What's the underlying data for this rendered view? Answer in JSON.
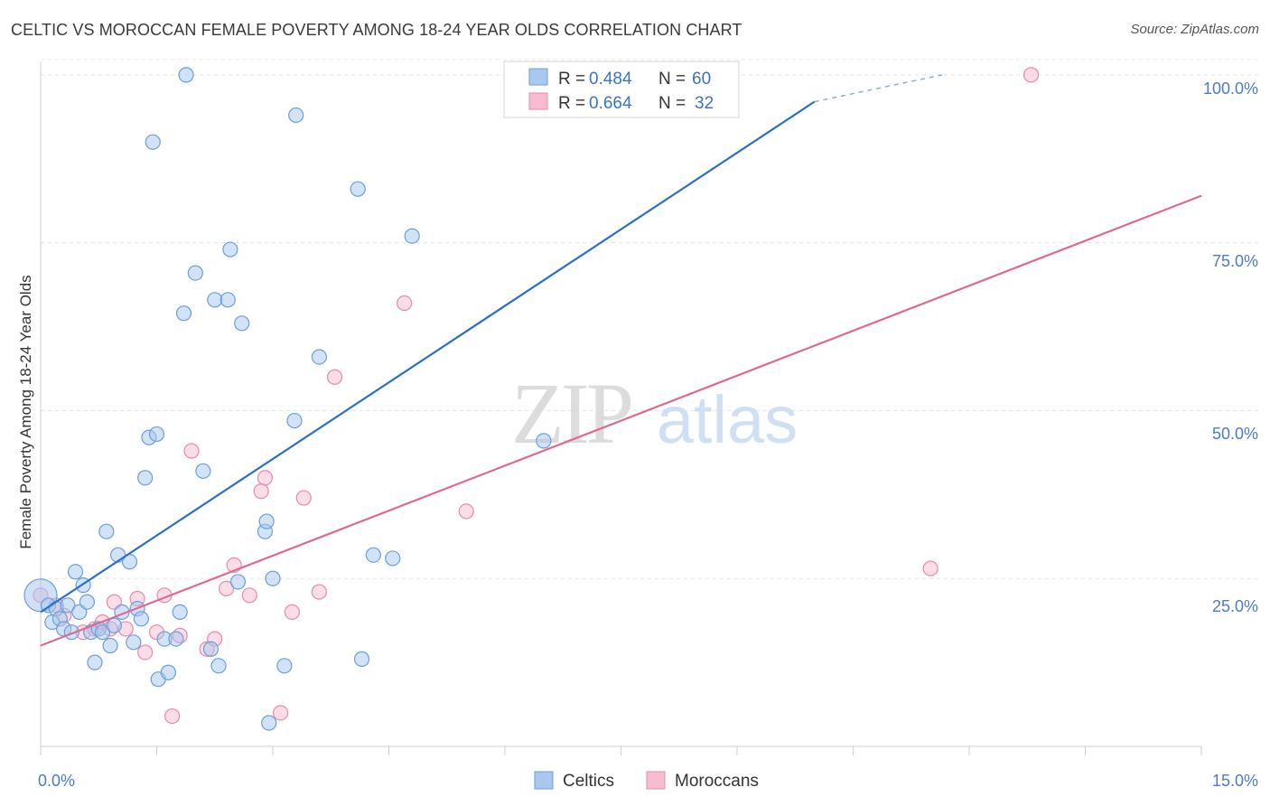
{
  "chart_data": {
    "type": "scatter",
    "title": "CELTIC VS MOROCCAN FEMALE POVERTY AMONG 18-24 YEAR OLDS CORRELATION CHART",
    "source": "Source: ZipAtlas.com",
    "ylabel": "Female Poverty Among 18-24 Year Olds",
    "xlabel": "",
    "x_tick_labels": [
      "0.0%",
      "15.0%"
    ],
    "y_tick_labels": [
      "25.0%",
      "50.0%",
      "75.0%",
      "100.0%"
    ],
    "xlim": [
      0,
      15
    ],
    "ylim": [
      0,
      102
    ],
    "watermark": {
      "zip": "ZIP",
      "atlas": "atlas"
    },
    "legend_stats": [
      {
        "r_label": "R = ",
        "r_value": "0.484",
        "n_label": "N = ",
        "n_value": "60"
      },
      {
        "r_label": "R = ",
        "r_value": "0.664",
        "n_label": "N = ",
        "n_value": "32"
      }
    ],
    "colors": {
      "celtics_fill": "#a8c8f0",
      "celtics_stroke": "#6a9fd8",
      "celtics_line": "#2a6fc9",
      "moroccans_fill": "#f7bcd0",
      "moroccans_stroke": "#e88aaa",
      "moroccans_line": "#e06892",
      "value_text": "#3a72c8",
      "tick_text": "#4a7bc8"
    },
    "series": [
      {
        "name": "Celtics",
        "trend": {
          "x": [
            0,
            10.0
          ],
          "y": [
            20.0,
            96.0
          ],
          "dashed_to": [
            11.65,
            100
          ]
        },
        "points": [
          [
            0.0,
            22.5
          ],
          [
            0.1,
            21.0
          ],
          [
            0.15,
            18.5
          ],
          [
            0.2,
            20.5
          ],
          [
            0.25,
            19.0
          ],
          [
            0.3,
            17.5
          ],
          [
            0.35,
            21.0
          ],
          [
            0.4,
            17.0
          ],
          [
            0.45,
            26.0
          ],
          [
            0.5,
            20.0
          ],
          [
            0.55,
            24.0
          ],
          [
            0.6,
            21.5
          ],
          [
            0.65,
            17.0
          ],
          [
            0.7,
            12.5
          ],
          [
            0.75,
            17.5
          ],
          [
            0.8,
            17.0
          ],
          [
            0.85,
            32.0
          ],
          [
            0.9,
            15.0
          ],
          [
            0.95,
            18.0
          ],
          [
            1.0,
            28.5
          ],
          [
            1.05,
            20.0
          ],
          [
            1.15,
            27.5
          ],
          [
            1.2,
            15.5
          ],
          [
            1.25,
            20.5
          ],
          [
            1.3,
            19.0
          ],
          [
            1.35,
            40.0
          ],
          [
            1.4,
            46.0
          ],
          [
            1.45,
            90.0
          ],
          [
            1.5,
            46.5
          ],
          [
            1.52,
            10.0
          ],
          [
            1.6,
            16.0
          ],
          [
            1.65,
            11.0
          ],
          [
            1.75,
            16.0
          ],
          [
            1.8,
            20.0
          ],
          [
            1.85,
            64.5
          ],
          [
            1.88,
            100.0
          ],
          [
            2.0,
            70.5
          ],
          [
            2.1,
            41.0
          ],
          [
            2.2,
            14.5
          ],
          [
            2.25,
            66.5
          ],
          [
            2.3,
            12.0
          ],
          [
            2.42,
            66.5
          ],
          [
            2.45,
            74.0
          ],
          [
            2.55,
            24.5
          ],
          [
            2.6,
            63.0
          ],
          [
            2.9,
            32.0
          ],
          [
            2.92,
            33.5
          ],
          [
            2.95,
            3.5
          ],
          [
            3.0,
            25.0
          ],
          [
            3.15,
            12.0
          ],
          [
            3.28,
            48.5
          ],
          [
            3.3,
            94.0
          ],
          [
            3.6,
            58.0
          ],
          [
            4.1,
            83.0
          ],
          [
            4.15,
            13.0
          ],
          [
            4.3,
            28.5
          ],
          [
            4.55,
            28.0
          ],
          [
            4.8,
            76.0
          ],
          [
            6.5,
            45.5
          ],
          [
            8.2,
            100.0
          ]
        ]
      },
      {
        "name": "Moroccans",
        "trend": {
          "x": [
            0,
            15.0
          ],
          "y": [
            15.0,
            82.0
          ]
        },
        "points": [
          [
            0.0,
            22.5
          ],
          [
            0.2,
            21.0
          ],
          [
            0.3,
            19.5
          ],
          [
            0.55,
            17.0
          ],
          [
            0.7,
            17.5
          ],
          [
            0.8,
            18.5
          ],
          [
            0.9,
            17.5
          ],
          [
            0.95,
            21.5
          ],
          [
            1.1,
            17.5
          ],
          [
            1.25,
            22.0
          ],
          [
            1.35,
            14.0
          ],
          [
            1.5,
            17.0
          ],
          [
            1.6,
            22.5
          ],
          [
            1.7,
            4.5
          ],
          [
            1.8,
            16.5
          ],
          [
            1.95,
            44.0
          ],
          [
            2.15,
            14.5
          ],
          [
            2.25,
            16.0
          ],
          [
            2.4,
            23.5
          ],
          [
            2.5,
            27.0
          ],
          [
            2.7,
            22.5
          ],
          [
            2.85,
            38.0
          ],
          [
            2.9,
            40.0
          ],
          [
            3.1,
            5.0
          ],
          [
            3.25,
            20.0
          ],
          [
            3.4,
            37.0
          ],
          [
            3.6,
            23.0
          ],
          [
            3.8,
            55.0
          ],
          [
            4.7,
            66.0
          ],
          [
            5.5,
            35.0
          ],
          [
            11.5,
            26.5
          ],
          [
            12.8,
            100.0
          ]
        ]
      }
    ]
  }
}
